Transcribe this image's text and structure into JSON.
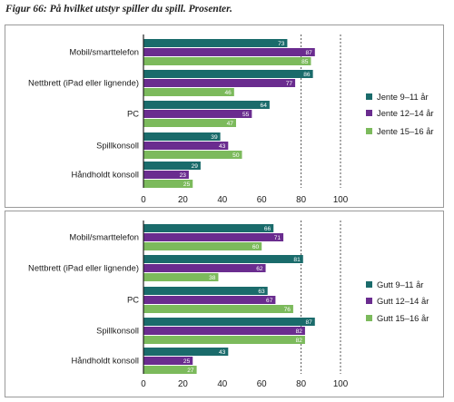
{
  "figure_title": "Figur 66: På hvilket utstyr spiller du spill. Prosenter.",
  "colors": {
    "series1": "#1a6b6b",
    "series2": "#6a2c8f",
    "series3": "#7cba5c"
  },
  "chart_data": [
    {
      "type": "bar",
      "orientation": "horizontal",
      "categories": [
        "Mobil/smarttelefon",
        "Nettbrett (iPad eller lignende)",
        "PC",
        "Spillkonsoll",
        "Håndholdt konsoll"
      ],
      "series": [
        {
          "name": "Jente 9–11 år",
          "values": [
            73,
            86,
            64,
            39,
            29
          ]
        },
        {
          "name": "Jente 12–14 år",
          "values": [
            87,
            77,
            55,
            43,
            23
          ]
        },
        {
          "name": "Jente 15–16 år",
          "values": [
            85,
            46,
            47,
            50,
            25
          ]
        }
      ],
      "xlim": [
        0,
        100
      ],
      "xticks": [
        "0",
        "20",
        "40",
        "60",
        "80",
        "100"
      ],
      "grid": "vertical dotted",
      "legend_position": "right"
    },
    {
      "type": "bar",
      "orientation": "horizontal",
      "categories": [
        "Mobil/smarttelefon",
        "Nettbrett (iPad eller lignende)",
        "PC",
        "Spillkonsoll",
        "Håndholdt konsoll"
      ],
      "series": [
        {
          "name": "Gutt 9–11 år",
          "values": [
            66,
            81,
            63,
            87,
            43
          ]
        },
        {
          "name": "Gutt 12–14 år",
          "values": [
            71,
            62,
            67,
            82,
            25
          ]
        },
        {
          "name": "Gutt 15–16 år",
          "values": [
            60,
            38,
            76,
            82,
            27
          ]
        }
      ],
      "xlim": [
        0,
        100
      ],
      "xticks": [
        "0",
        "20",
        "40",
        "60",
        "80",
        "100"
      ],
      "grid": "vertical dotted",
      "legend_position": "right"
    }
  ]
}
